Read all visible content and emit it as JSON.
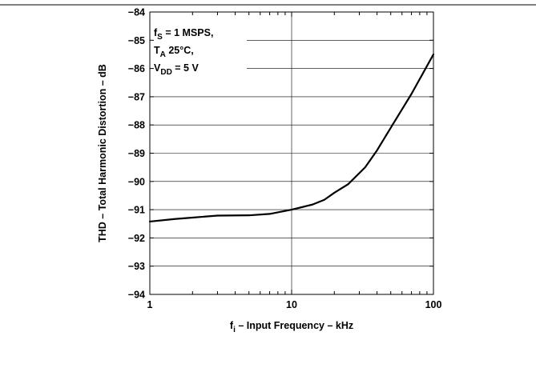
{
  "chart_data": {
    "type": "line",
    "x_scale": "log",
    "xlabel": {
      "main": "f",
      "sub": "i",
      "rest": " – Input Frequency – kHz"
    },
    "ylabel": "THD – Total Harmonic Distortion – dB",
    "xlim": [
      1,
      100
    ],
    "ylim": [
      -94,
      -84
    ],
    "x_ticks": [
      1,
      10,
      100
    ],
    "x_tick_labels": [
      "1",
      "10",
      "100"
    ],
    "y_ticks": [
      -84,
      -85,
      -86,
      -87,
      -88,
      -89,
      -90,
      -91,
      -92,
      -93,
      -94
    ],
    "y_tick_labels": [
      "−84",
      "−85",
      "−86",
      "−87",
      "−88",
      "−89",
      "−90",
      "−91",
      "−92",
      "−93",
      "−94"
    ],
    "grid": true,
    "annotation": [
      {
        "main": "f",
        "sub": "S",
        "rest": " = 1 MSPS,"
      },
      {
        "main": "T",
        "sub": "A",
        "rest": " 25°C,"
      },
      {
        "main": "V",
        "sub": "DD",
        "rest": " = 5 V"
      }
    ],
    "series": [
      {
        "x": [
          1,
          1.5,
          2,
          3,
          5,
          7,
          10,
          14,
          17,
          20,
          25,
          33,
          40,
          50,
          70,
          100
        ],
        "y": [
          -91.42,
          -91.33,
          -91.28,
          -91.21,
          -91.2,
          -91.15,
          -91.0,
          -90.82,
          -90.65,
          -90.4,
          -90.1,
          -89.5,
          -88.9,
          -88.1,
          -86.9,
          -85.5
        ]
      }
    ],
    "line_color": "#000000",
    "grid_color": "#000000"
  }
}
